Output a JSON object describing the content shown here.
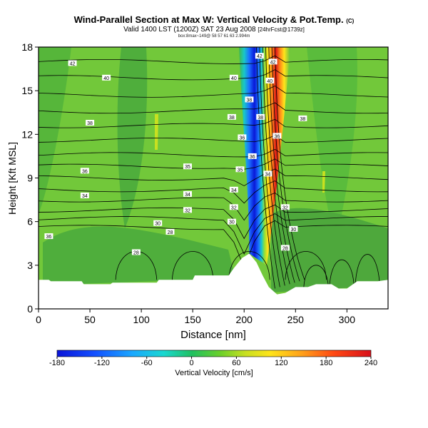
{
  "chart_data": {
    "type": "heatmap",
    "title": "Wind-Parallel Section at Max W: Vertical Velocity & Pot.Temp.",
    "title_mark": "(C)",
    "subtitle_main": "Valid 1400 LST (1200Z) SAT 23 Aug 2008",
    "subtitle_small": "[24hrFcst@1739z]",
    "subtitle_extra": "box:8max~149@ 58 57 61 63 2.994m",
    "xlabel": "Distance [nm]",
    "ylabel": "Height [Kft MSL]",
    "xlim": [
      0,
      340
    ],
    "ylim": [
      0,
      18
    ],
    "x_ticks": [
      0,
      50,
      100,
      150,
      200,
      250,
      300
    ],
    "y_ticks": [
      0,
      3,
      6,
      9,
      12,
      15,
      18
    ],
    "colorbar": {
      "label": "Vertical Velocity [cm/s]",
      "ticks": [
        -180,
        -120,
        -60,
        0,
        60,
        120,
        180,
        240
      ],
      "range": [
        -180,
        240
      ]
    },
    "terrain": [
      [
        0,
        2
      ],
      [
        10,
        2
      ],
      [
        12,
        1.9
      ],
      [
        42,
        1.9
      ],
      [
        44,
        1.7
      ],
      [
        70,
        1.7
      ],
      [
        72,
        1.8
      ],
      [
        115,
        1.8
      ],
      [
        117,
        2
      ],
      [
        150,
        2
      ],
      [
        152,
        2.3
      ],
      [
        185,
        2.3
      ],
      [
        190,
        2.8
      ],
      [
        198,
        3.5
      ],
      [
        205,
        3.8
      ],
      [
        212,
        3.2
      ],
      [
        218,
        2.3
      ],
      [
        224,
        1.5
      ],
      [
        232,
        1.0
      ],
      [
        240,
        1.1
      ],
      [
        250,
        1.5
      ],
      [
        262,
        1.5
      ],
      [
        270,
        1.7
      ],
      [
        285,
        1.7
      ],
      [
        292,
        1.4
      ],
      [
        300,
        1.4
      ],
      [
        310,
        1.9
      ],
      [
        330,
        1.9
      ],
      [
        340,
        2
      ]
    ],
    "isentrope_labels": [
      {
        "x": 33,
        "y": 16.9,
        "text": "42"
      },
      {
        "x": 215,
        "y": 17.4,
        "text": "42"
      },
      {
        "x": 228,
        "y": 17.0,
        "text": "42"
      },
      {
        "x": 66,
        "y": 15.9,
        "text": "40"
      },
      {
        "x": 190,
        "y": 15.9,
        "text": "40"
      },
      {
        "x": 225,
        "y": 15.7,
        "text": "40"
      },
      {
        "x": 205,
        "y": 14.4,
        "text": "38"
      },
      {
        "x": 188,
        "y": 13.2,
        "text": "38"
      },
      {
        "x": 216,
        "y": 13.2,
        "text": "38"
      },
      {
        "x": 50,
        "y": 12.8,
        "text": "38"
      },
      {
        "x": 257,
        "y": 13.1,
        "text": "38"
      },
      {
        "x": 198,
        "y": 11.8,
        "text": "36"
      },
      {
        "x": 208,
        "y": 10.5,
        "text": "36"
      },
      {
        "x": 232,
        "y": 11.9,
        "text": "36"
      },
      {
        "x": 45,
        "y": 9.5,
        "text": "36"
      },
      {
        "x": 145,
        "y": 9.8,
        "text": "35"
      },
      {
        "x": 196,
        "y": 9.6,
        "text": "35"
      },
      {
        "x": 45,
        "y": 7.8,
        "text": "34"
      },
      {
        "x": 145,
        "y": 7.9,
        "text": "34"
      },
      {
        "x": 223,
        "y": 9.3,
        "text": "34"
      },
      {
        "x": 190,
        "y": 8.2,
        "text": "34"
      },
      {
        "x": 145,
        "y": 6.8,
        "text": "32"
      },
      {
        "x": 190,
        "y": 7.0,
        "text": "32"
      },
      {
        "x": 240,
        "y": 7.0,
        "text": "32"
      },
      {
        "x": 116,
        "y": 5.9,
        "text": "30"
      },
      {
        "x": 188,
        "y": 6.0,
        "text": "30"
      },
      {
        "x": 248,
        "y": 5.5,
        "text": "30"
      },
      {
        "x": 128,
        "y": 5.3,
        "text": "28"
      },
      {
        "x": 240,
        "y": 4.2,
        "text": "28"
      },
      {
        "x": 10,
        "y": 5.0,
        "text": "36"
      },
      {
        "x": 95,
        "y": 3.9,
        "text": "28"
      }
    ]
  }
}
